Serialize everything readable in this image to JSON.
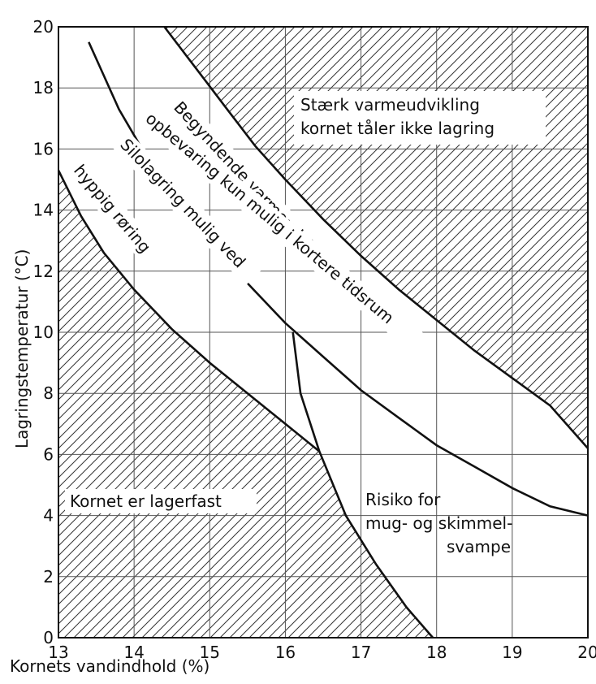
{
  "chart_data": {
    "type": "line",
    "title": "",
    "xlabel": "Kornets vandindhold (%)",
    "ylabel": "Lagringstemperatur (°C)",
    "xlim": [
      13,
      20
    ],
    "ylim": [
      0,
      20
    ],
    "x_ticks": [
      13,
      14,
      15,
      16,
      17,
      18,
      19,
      20
    ],
    "y_ticks": [
      0,
      2,
      4,
      6,
      8,
      10,
      12,
      14,
      16,
      18,
      20
    ],
    "grid": true,
    "series": [
      {
        "key": "lower",
        "x": [
          13.0,
          13.3,
          13.6,
          14.0,
          14.5,
          15.0,
          15.5,
          16.0,
          16.45
        ],
        "y": [
          15.3,
          13.8,
          12.6,
          11.4,
          10.1,
          9.0,
          8.0,
          7.0,
          6.1
        ]
      },
      {
        "key": "mould",
        "x": [
          16.1,
          16.2,
          16.45,
          16.8,
          17.2,
          17.6,
          17.95
        ],
        "y": [
          10.0,
          8.0,
          6.1,
          4.0,
          2.4,
          1.0,
          0.0
        ]
      },
      {
        "key": "middle",
        "x": [
          13.4,
          13.8,
          14.2,
          14.6,
          15.0,
          15.5,
          16.0,
          16.5,
          17.0,
          17.5,
          18.0,
          18.5,
          19.0,
          19.5,
          20.0
        ],
        "y": [
          19.5,
          17.3,
          15.6,
          14.2,
          13.0,
          11.6,
          10.3,
          9.2,
          8.1,
          7.2,
          6.3,
          5.6,
          4.9,
          4.3,
          4.0
        ]
      },
      {
        "key": "upper",
        "x": [
          14.4,
          14.8,
          15.2,
          15.6,
          16.0,
          16.5,
          17.0,
          17.5,
          18.0,
          18.5,
          19.0,
          19.5,
          20.0
        ],
        "y": [
          20.0,
          18.7,
          17.4,
          16.1,
          15.0,
          13.7,
          12.5,
          11.4,
          10.4,
          9.4,
          8.5,
          7.6,
          6.2
        ]
      }
    ],
    "hatched_regions": [
      "lower-left",
      "upper-right"
    ],
    "labels": {
      "upper_region": [
        "Stærk varmeudvikling",
        "kornet tåler ikke lagring"
      ],
      "lower_region": "Kornet er lagerfast",
      "mould_region": [
        "Risiko for",
        "mug- og skimmel-",
        "svampe"
      ],
      "curve_upper_1": "Begyndende varmeudvikling",
      "curve_upper_2": "opbevaring kun mulig i kortere tidsrum",
      "curve_middle": "Silolagring mulig ved",
      "curve_lower": "hyppig røring"
    }
  }
}
